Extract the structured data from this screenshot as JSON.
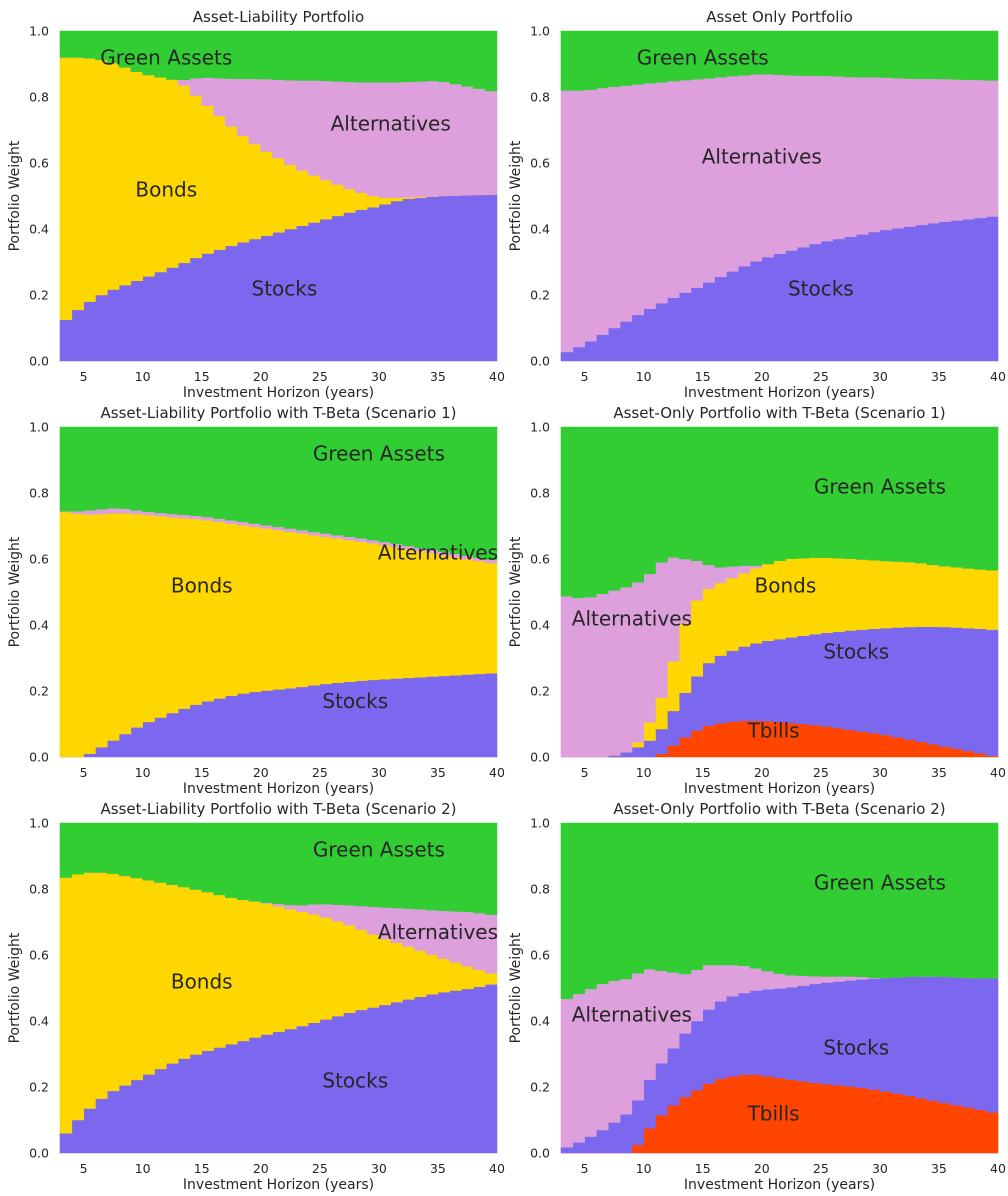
{
  "colors": {
    "Green Assets": "#32cd32",
    "Alternatives": "#dda0dd",
    "Bonds": "#ffd700",
    "Stocks": "#7b68ee",
    "Tbills": "#ff4500"
  },
  "chart_data": [
    {
      "type": "area",
      "stacked": true,
      "title": "Asset-Liability Portfolio",
      "xlabel": "Investment Horizon (years)",
      "ylabel": "Portfolio Weight",
      "xlim": [
        3,
        40
      ],
      "ylim": [
        0,
        1
      ],
      "xticks": [
        5,
        10,
        15,
        20,
        25,
        30,
        35,
        40
      ],
      "yticks": [
        0.0,
        0.2,
        0.4,
        0.6,
        0.8,
        1.0
      ],
      "grid": false,
      "region_labels": [
        {
          "text": "Green Assets",
          "x": 12,
          "y": 0.92
        },
        {
          "text": "Alternatives",
          "x": 31,
          "y": 0.72
        },
        {
          "text": "Bonds",
          "x": 12,
          "y": 0.52
        },
        {
          "text": "Stocks",
          "x": 22,
          "y": 0.22
        }
      ],
      "x": [
        3,
        5,
        7,
        10,
        13,
        15,
        18,
        20,
        23,
        25,
        28,
        30,
        32,
        35,
        40
      ],
      "series": [
        {
          "name": "Stocks",
          "values": [
            0.11,
            0.17,
            0.21,
            0.25,
            0.29,
            0.32,
            0.355,
            0.375,
            0.405,
            0.425,
            0.455,
            0.47,
            0.49,
            0.5,
            0.505
          ]
        },
        {
          "name": "Bonds",
          "values": [
            0.81,
            0.75,
            0.7,
            0.62,
            0.56,
            0.47,
            0.34,
            0.27,
            0.18,
            0.13,
            0.06,
            0.025,
            0.005,
            0.0,
            0.0
          ]
        },
        {
          "name": "Alternatives",
          "values": [
            0.0,
            0.0,
            0.0,
            0.0,
            0.0,
            0.07,
            0.16,
            0.21,
            0.265,
            0.295,
            0.33,
            0.35,
            0.35,
            0.35,
            0.31
          ]
        },
        {
          "name": "Green Assets",
          "values": [
            0.08,
            0.08,
            0.09,
            0.13,
            0.15,
            0.14,
            0.145,
            0.145,
            0.15,
            0.15,
            0.155,
            0.155,
            0.155,
            0.15,
            0.185
          ]
        }
      ]
    },
    {
      "type": "area",
      "stacked": true,
      "title": "Asset Only Portfolio",
      "xlabel": "Investment Horizon (years)",
      "ylabel": "Portfolio Weight",
      "xlim": [
        3,
        40
      ],
      "ylim": [
        0,
        1
      ],
      "xticks": [
        5,
        10,
        15,
        20,
        25,
        30,
        35,
        40
      ],
      "yticks": [
        0.0,
        0.2,
        0.4,
        0.6,
        0.8,
        1.0
      ],
      "grid": false,
      "region_labels": [
        {
          "text": "Green Assets",
          "x": 15,
          "y": 0.92
        },
        {
          "text": "Alternatives",
          "x": 20,
          "y": 0.62
        },
        {
          "text": "Stocks",
          "x": 25,
          "y": 0.22
        }
      ],
      "x": [
        3,
        5,
        7,
        10,
        13,
        15,
        18,
        20,
        23,
        25,
        28,
        30,
        33,
        35,
        40
      ],
      "series": [
        {
          "name": "Stocks",
          "values": [
            0.02,
            0.05,
            0.09,
            0.15,
            0.2,
            0.23,
            0.28,
            0.31,
            0.34,
            0.36,
            0.38,
            0.395,
            0.41,
            0.42,
            0.44
          ]
        },
        {
          "name": "Alternatives",
          "values": [
            0.8,
            0.77,
            0.74,
            0.69,
            0.65,
            0.625,
            0.585,
            0.56,
            0.525,
            0.505,
            0.48,
            0.465,
            0.445,
            0.435,
            0.41
          ]
        },
        {
          "name": "Green Assets",
          "values": [
            0.18,
            0.18,
            0.17,
            0.16,
            0.15,
            0.145,
            0.135,
            0.13,
            0.135,
            0.135,
            0.14,
            0.14,
            0.145,
            0.145,
            0.15
          ]
        }
      ]
    },
    {
      "type": "area",
      "stacked": true,
      "title": "Asset-Liability Portfolio with T-Beta (Scenario 1)",
      "xlabel": "Investment Horizon (years)",
      "ylabel": "Portfolio Weight",
      "xlim": [
        3,
        40
      ],
      "ylim": [
        0,
        1
      ],
      "xticks": [
        5,
        10,
        15,
        20,
        25,
        30,
        35,
        40
      ],
      "yticks": [
        0.0,
        0.2,
        0.4,
        0.6,
        0.8,
        1.0
      ],
      "grid": false,
      "region_labels": [
        {
          "text": "Green Assets",
          "x": 30,
          "y": 0.92
        },
        {
          "text": "Alternatives",
          "x": 35,
          "y": 0.62
        },
        {
          "text": "Bonds",
          "x": 15,
          "y": 0.52
        },
        {
          "text": "Stocks",
          "x": 28,
          "y": 0.17
        }
      ],
      "x": [
        3,
        5,
        6,
        8,
        10,
        13,
        15,
        18,
        20,
        23,
        25,
        28,
        30,
        35,
        40
      ],
      "series": [
        {
          "name": "Stocks",
          "values": [
            0.0,
            0.0,
            0.02,
            0.06,
            0.1,
            0.14,
            0.165,
            0.19,
            0.2,
            0.21,
            0.22,
            0.23,
            0.235,
            0.245,
            0.255
          ]
        },
        {
          "name": "Bonds",
          "values": [
            0.745,
            0.735,
            0.715,
            0.68,
            0.635,
            0.585,
            0.555,
            0.515,
            0.495,
            0.47,
            0.45,
            0.425,
            0.41,
            0.37,
            0.33
          ]
        },
        {
          "name": "Alternatives",
          "values": [
            0.0,
            0.01,
            0.015,
            0.015,
            0.01,
            0.01,
            0.01,
            0.01,
            0.01,
            0.01,
            0.01,
            0.01,
            0.01,
            0.01,
            0.01
          ]
        },
        {
          "name": "Green Assets",
          "values": [
            0.255,
            0.255,
            0.25,
            0.245,
            0.255,
            0.265,
            0.27,
            0.285,
            0.295,
            0.31,
            0.32,
            0.335,
            0.345,
            0.375,
            0.405
          ]
        }
      ]
    },
    {
      "type": "area",
      "stacked": true,
      "title": "Asset-Only Portfolio with T-Beta (Scenario 1)",
      "xlabel": "Investment Horizon (years)",
      "ylabel": "Portfolio Weight",
      "xlim": [
        3,
        40
      ],
      "ylim": [
        0,
        1
      ],
      "xticks": [
        5,
        10,
        15,
        20,
        25,
        30,
        35,
        40
      ],
      "yticks": [
        0.0,
        0.2,
        0.4,
        0.6,
        0.8,
        1.0
      ],
      "grid": false,
      "region_labels": [
        {
          "text": "Green Assets",
          "x": 30,
          "y": 0.82
        },
        {
          "text": "Bonds",
          "x": 22,
          "y": 0.52
        },
        {
          "text": "Alternatives",
          "x": 9,
          "y": 0.42
        },
        {
          "text": "Stocks",
          "x": 28,
          "y": 0.32
        },
        {
          "text": "Tbills",
          "x": 21,
          "y": 0.08
        }
      ],
      "x": [
        3,
        5,
        7,
        9,
        10,
        11,
        12,
        13,
        14,
        15,
        16,
        17,
        18,
        20,
        22,
        25,
        28,
        30,
        33,
        35,
        38,
        40
      ],
      "series": [
        {
          "name": "Tbills",
          "values": [
            0.0,
            0.0,
            0.0,
            0.0,
            0.0,
            0.0,
            0.02,
            0.05,
            0.07,
            0.09,
            0.1,
            0.105,
            0.11,
            0.11,
            0.105,
            0.095,
            0.08,
            0.07,
            0.05,
            0.035,
            0.015,
            0.0
          ]
        },
        {
          "name": "Stocks",
          "values": [
            0.0,
            0.0,
            0.0,
            0.02,
            0.04,
            0.06,
            0.09,
            0.12,
            0.15,
            0.18,
            0.2,
            0.21,
            0.22,
            0.24,
            0.255,
            0.28,
            0.305,
            0.32,
            0.345,
            0.36,
            0.375,
            0.385
          ]
        },
        {
          "name": "Bonds",
          "values": [
            0.0,
            0.0,
            0.0,
            0.0,
            0.03,
            0.08,
            0.11,
            0.19,
            0.23,
            0.23,
            0.22,
            0.22,
            0.22,
            0.23,
            0.24,
            0.23,
            0.215,
            0.205,
            0.195,
            0.185,
            0.18,
            0.18
          ]
        },
        {
          "name": "Alternatives",
          "values": [
            0.49,
            0.48,
            0.5,
            0.5,
            0.47,
            0.43,
            0.39,
            0.24,
            0.15,
            0.09,
            0.055,
            0.04,
            0.03,
            0.0,
            0.0,
            0.0,
            0.0,
            0.0,
            0.0,
            0.0,
            0.0,
            0.0
          ]
        },
        {
          "name": "Green Assets",
          "values": [
            0.51,
            0.52,
            0.5,
            0.48,
            0.46,
            0.43,
            0.39,
            0.4,
            0.4,
            0.41,
            0.425,
            0.425,
            0.42,
            0.42,
            0.4,
            0.395,
            0.4,
            0.405,
            0.41,
            0.42,
            0.43,
            0.435
          ]
        }
      ]
    },
    {
      "type": "area",
      "stacked": true,
      "title": "Asset-Liability Portfolio with T-Beta (Scenario 2)",
      "xlabel": "Investment Horizon (years)",
      "ylabel": "Portfolio Weight",
      "xlim": [
        3,
        40
      ],
      "ylim": [
        0,
        1
      ],
      "xticks": [
        5,
        10,
        15,
        20,
        25,
        30,
        35,
        40
      ],
      "yticks": [
        0.0,
        0.2,
        0.4,
        0.6,
        0.8,
        1.0
      ],
      "grid": false,
      "region_labels": [
        {
          "text": "Green Assets",
          "x": 30,
          "y": 0.92
        },
        {
          "text": "Alternatives",
          "x": 35,
          "y": 0.67
        },
        {
          "text": "Bonds",
          "x": 15,
          "y": 0.52
        },
        {
          "text": "Stocks",
          "x": 28,
          "y": 0.22
        }
      ],
      "x": [
        3,
        4,
        5,
        7,
        10,
        13,
        15,
        18,
        20,
        23,
        25,
        28,
        30,
        33,
        35,
        38,
        40
      ],
      "series": [
        {
          "name": "Stocks",
          "values": [
            0.04,
            0.08,
            0.12,
            0.18,
            0.23,
            0.28,
            0.305,
            0.335,
            0.355,
            0.38,
            0.4,
            0.43,
            0.445,
            0.47,
            0.485,
            0.5,
            0.515
          ]
        },
        {
          "name": "Bonds",
          "values": [
            0.79,
            0.76,
            0.73,
            0.67,
            0.6,
            0.53,
            0.49,
            0.435,
            0.405,
            0.355,
            0.32,
            0.255,
            0.21,
            0.15,
            0.11,
            0.06,
            0.025
          ]
        },
        {
          "name": "Alternatives",
          "values": [
            0.0,
            0.0,
            0.0,
            0.0,
            0.0,
            0.0,
            0.0,
            0.0,
            0.0,
            0.015,
            0.035,
            0.065,
            0.09,
            0.12,
            0.14,
            0.17,
            0.18
          ]
        },
        {
          "name": "Green Assets",
          "values": [
            0.17,
            0.16,
            0.15,
            0.15,
            0.17,
            0.19,
            0.205,
            0.23,
            0.24,
            0.25,
            0.245,
            0.25,
            0.255,
            0.26,
            0.265,
            0.27,
            0.28
          ]
        }
      ]
    },
    {
      "type": "area",
      "stacked": true,
      "title": "Asset-Only Portfolio with T-Beta (Scenario 2)",
      "xlabel": "Investment Horizon (years)",
      "ylabel": "Portfolio Weight",
      "xlim": [
        3,
        40
      ],
      "ylim": [
        0,
        1
      ],
      "xticks": [
        5,
        10,
        15,
        20,
        25,
        30,
        35,
        40
      ],
      "yticks": [
        0.0,
        0.2,
        0.4,
        0.6,
        0.8,
        1.0
      ],
      "grid": false,
      "region_labels": [
        {
          "text": "Green Assets",
          "x": 30,
          "y": 0.82
        },
        {
          "text": "Alternatives",
          "x": 9,
          "y": 0.42
        },
        {
          "text": "Stocks",
          "x": 28,
          "y": 0.32
        },
        {
          "text": "Tbills",
          "x": 21,
          "y": 0.12
        }
      ],
      "x": [
        3,
        5,
        7,
        9,
        10,
        11,
        12,
        13,
        14,
        15,
        16,
        17,
        18,
        19,
        20,
        22,
        25,
        28,
        30,
        33,
        35,
        38,
        40
      ],
      "series": [
        {
          "name": "Tbills",
          "values": [
            0.0,
            0.0,
            0.0,
            0.0,
            0.05,
            0.1,
            0.13,
            0.16,
            0.18,
            0.2,
            0.22,
            0.23,
            0.235,
            0.24,
            0.235,
            0.225,
            0.21,
            0.2,
            0.19,
            0.17,
            0.155,
            0.135,
            0.12
          ]
        },
        {
          "name": "Stocks",
          "values": [
            0.01,
            0.04,
            0.08,
            0.13,
            0.14,
            0.155,
            0.16,
            0.185,
            0.2,
            0.22,
            0.23,
            0.24,
            0.245,
            0.25,
            0.26,
            0.275,
            0.305,
            0.325,
            0.34,
            0.365,
            0.38,
            0.395,
            0.41
          ]
        },
        {
          "name": "Alternatives",
          "values": [
            0.45,
            0.45,
            0.44,
            0.4,
            0.37,
            0.3,
            0.26,
            0.2,
            0.16,
            0.15,
            0.12,
            0.1,
            0.09,
            0.075,
            0.06,
            0.04,
            0.02,
            0.01,
            0.0,
            0.0,
            0.0,
            0.0,
            0.0
          ]
        },
        {
          "name": "Green Assets",
          "values": [
            0.54,
            0.51,
            0.48,
            0.47,
            0.44,
            0.445,
            0.45,
            0.455,
            0.46,
            0.43,
            0.43,
            0.43,
            0.43,
            0.435,
            0.445,
            0.46,
            0.465,
            0.465,
            0.47,
            0.465,
            0.465,
            0.47,
            0.47
          ]
        }
      ]
    }
  ]
}
